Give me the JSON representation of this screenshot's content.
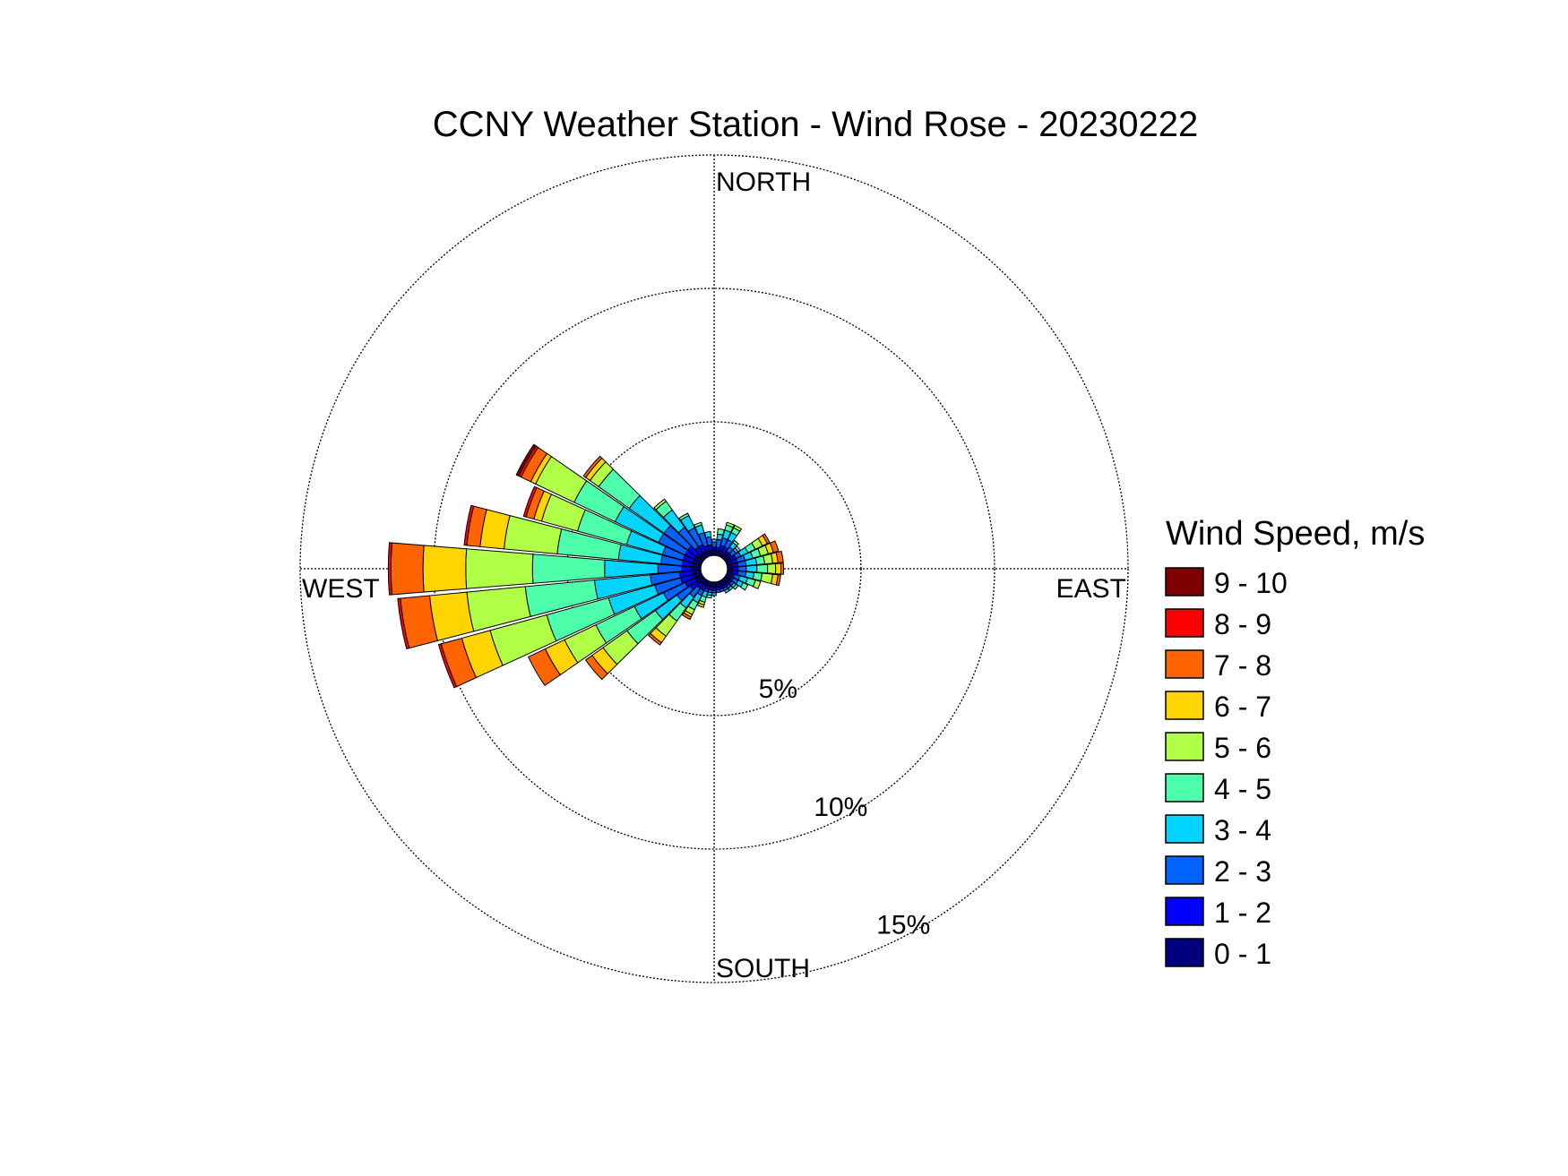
{
  "chart_data": {
    "type": "wind-rose",
    "title": "CCNY Weather Station - Wind Rose - 20230222",
    "directions": [
      "NORTH",
      "EAST",
      "SOUTH",
      "WEST"
    ],
    "rings": [
      {
        "value": 5,
        "label": "5%"
      },
      {
        "value": 10,
        "label": "10%"
      },
      {
        "value": 15,
        "label": "15%"
      }
    ],
    "rmax": 15,
    "grid": true,
    "legend_title": "Wind Speed, m/s",
    "legend_position": "right",
    "speed_bins": [
      {
        "label": "0 - 1",
        "color": "#00007f"
      },
      {
        "label": "1 - 2",
        "color": "#0000ff"
      },
      {
        "label": "2 - 3",
        "color": "#0063ff"
      },
      {
        "label": "3 - 4",
        "color": "#00d4ff"
      },
      {
        "label": "4 - 5",
        "color": "#4dffaa"
      },
      {
        "label": "5 - 6",
        "color": "#b0ff46"
      },
      {
        "label": "6 - 7",
        "color": "#ffd400"
      },
      {
        "label": "7 - 8",
        "color": "#ff6400"
      },
      {
        "label": "8 - 9",
        "color": "#ff0000"
      },
      {
        "label": "9 - 10",
        "color": "#7f0000"
      }
    ],
    "sector_width_deg": 10,
    "series": [
      {
        "direction_deg": 10,
        "values": [
          0.2,
          0.1,
          0.3,
          0.2,
          0.2,
          0,
          0,
          0,
          0,
          0
        ]
      },
      {
        "direction_deg": 20,
        "values": [
          0.2,
          0.2,
          0.3,
          0.3,
          0.2,
          0.1,
          0,
          0,
          0,
          0
        ]
      },
      {
        "direction_deg": 30,
        "values": [
          0.2,
          0.2,
          0.3,
          0.3,
          0.2,
          0.1,
          0,
          0,
          0,
          0
        ]
      },
      {
        "direction_deg": 40,
        "values": [
          0.2,
          0.1,
          0.2,
          0.2,
          0.1,
          0,
          0,
          0,
          0,
          0
        ]
      },
      {
        "direction_deg": 50,
        "values": [
          0.2,
          0.1,
          0.2,
          0.1,
          0.1,
          0,
          0,
          0,
          0,
          0
        ]
      },
      {
        "direction_deg": 60,
        "values": [
          0.2,
          0.2,
          0.2,
          0.3,
          0.3,
          0.3,
          0.2,
          0.1,
          0,
          0
        ]
      },
      {
        "direction_deg": 70,
        "values": [
          0.2,
          0.2,
          0.3,
          0.3,
          0.3,
          0.3,
          0.2,
          0.2,
          0,
          0
        ]
      },
      {
        "direction_deg": 80,
        "values": [
          0.2,
          0.2,
          0.3,
          0.4,
          0.3,
          0.3,
          0.2,
          0.2,
          0,
          0
        ]
      },
      {
        "direction_deg": 90,
        "values": [
          0.2,
          0.2,
          0.3,
          0.4,
          0.4,
          0.3,
          0.2,
          0.1,
          0,
          0
        ]
      },
      {
        "direction_deg": 100,
        "values": [
          0.2,
          0.2,
          0.3,
          0.3,
          0.3,
          0.4,
          0.2,
          0.1,
          0,
          0
        ]
      },
      {
        "direction_deg": 110,
        "values": [
          0.2,
          0.1,
          0.2,
          0.3,
          0.3,
          0.2,
          0,
          0,
          0,
          0
        ]
      },
      {
        "direction_deg": 120,
        "values": [
          0.2,
          0.1,
          0.2,
          0.2,
          0.2,
          0,
          0,
          0,
          0,
          0
        ]
      },
      {
        "direction_deg": 130,
        "values": [
          0.2,
          0.1,
          0.1,
          0.1,
          0.1,
          0,
          0,
          0,
          0,
          0
        ]
      },
      {
        "direction_deg": 140,
        "values": [
          0.2,
          0.1,
          0.1,
          0.1,
          0,
          0,
          0,
          0,
          0,
          0
        ]
      },
      {
        "direction_deg": 150,
        "values": [
          0.2,
          0.1,
          0.1,
          0.1,
          0,
          0,
          0,
          0,
          0,
          0
        ]
      },
      {
        "direction_deg": 160,
        "values": [
          0.2,
          0.1,
          0.1,
          0,
          0,
          0,
          0,
          0,
          0,
          0
        ]
      },
      {
        "direction_deg": 170,
        "values": [
          0.2,
          0.1,
          0.1,
          0,
          0,
          0,
          0,
          0,
          0,
          0
        ]
      },
      {
        "direction_deg": 180,
        "values": [
          0.2,
          0.1,
          0.1,
          0.1,
          0,
          0,
          0,
          0,
          0,
          0
        ]
      },
      {
        "direction_deg": 190,
        "values": [
          0.2,
          0.1,
          0.1,
          0.1,
          0.1,
          0,
          0,
          0,
          0,
          0
        ]
      },
      {
        "direction_deg": 200,
        "values": [
          0.2,
          0.1,
          0.1,
          0.2,
          0.2,
          0.1,
          0.1,
          0,
          0,
          0
        ]
      },
      {
        "direction_deg": 210,
        "values": [
          0.2,
          0.2,
          0.2,
          0.3,
          0.3,
          0.2,
          0.1,
          0.1,
          0,
          0
        ]
      },
      {
        "direction_deg": 220,
        "values": [
          0.2,
          0.2,
          0.4,
          0.5,
          0.6,
          0.7,
          0.3,
          0.1,
          0,
          0
        ]
      },
      {
        "direction_deg": 230,
        "values": [
          0.3,
          0.3,
          0.6,
          1.0,
          1.3,
          1.1,
          0.5,
          0.3,
          0,
          0
        ]
      },
      {
        "direction_deg": 240,
        "values": [
          0.3,
          0.4,
          0.9,
          1.2,
          1.6,
          1.3,
          0.8,
          0.7,
          0,
          0
        ]
      },
      {
        "direction_deg": 250,
        "values": [
          0.3,
          0.5,
          1.0,
          1.8,
          2.4,
          2.2,
          1.1,
          0.8,
          0.1,
          0
        ]
      },
      {
        "direction_deg": 260,
        "values": [
          0.3,
          0.5,
          1.1,
          2.1,
          2.6,
          2.2,
          1.4,
          1.1,
          0.1,
          0
        ]
      },
      {
        "direction_deg": 270,
        "values": [
          0.3,
          0.4,
          0.9,
          2.0,
          2.7,
          2.5,
          1.6,
          1.2,
          0.1,
          0
        ]
      },
      {
        "direction_deg": 280,
        "values": [
          0.3,
          0.4,
          0.8,
          1.6,
          2.3,
          2.0,
          0.9,
          0.5,
          0.1,
          0
        ]
      },
      {
        "direction_deg": 290,
        "values": [
          0.3,
          0.4,
          0.8,
          1.4,
          1.9,
          1.4,
          0.3,
          0.3,
          0.1,
          0
        ]
      },
      {
        "direction_deg": 300,
        "values": [
          0.3,
          0.4,
          1.1,
          1.8,
          1.7,
          1.6,
          0.2,
          0.4,
          0.1,
          0.1
        ]
      },
      {
        "direction_deg": 310,
        "values": [
          0.3,
          0.4,
          1.1,
          1.6,
          1.4,
          0.4,
          0.2,
          0.1,
          0,
          0
        ]
      },
      {
        "direction_deg": 320,
        "values": [
          0.2,
          0.3,
          0.9,
          0.8,
          0.4,
          0.1,
          0,
          0,
          0,
          0
        ]
      },
      {
        "direction_deg": 330,
        "values": [
          0.2,
          0.3,
          0.7,
          0.5,
          0.1,
          0,
          0,
          0,
          0,
          0
        ]
      },
      {
        "direction_deg": 340,
        "values": [
          0.2,
          0.2,
          0.5,
          0.3,
          0.1,
          0,
          0,
          0,
          0,
          0
        ]
      },
      {
        "direction_deg": 350,
        "values": [
          0.2,
          0.2,
          0.3,
          0.2,
          0,
          0,
          0,
          0,
          0,
          0
        ]
      },
      {
        "direction_deg": 0,
        "values": [
          0.2,
          0.1,
          0.2,
          0.1,
          0,
          0,
          0,
          0,
          0,
          0
        ]
      }
    ]
  }
}
